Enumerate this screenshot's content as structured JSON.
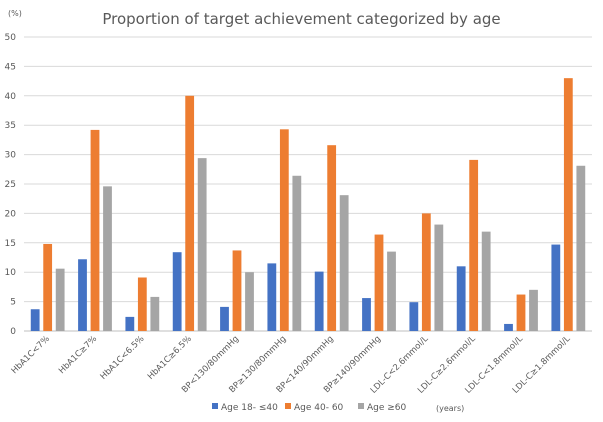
{
  "chart_data": {
    "type": "bar",
    "title": "Proportion of target achievement categorized by age",
    "y_unit_label": "(%)",
    "x_unit_label": "(years)",
    "ylim": [
      0,
      50
    ],
    "yticks": [
      0,
      5,
      10,
      15,
      20,
      25,
      30,
      35,
      40,
      45,
      50
    ],
    "grid": true,
    "legend_position": "bottom",
    "categories": [
      "HbA1C<7%",
      "HbA1C≥7%",
      "HbA1C<6.5%",
      "HbA1C≥6.5%",
      "BP<130/80mmHg",
      "BP≥130/80mmHg",
      "BP<140/90mmHg",
      "BP≥140/90mmHg",
      "LDL-C<2.6mmol/L",
      "LDL-C≥2.6mmol/L",
      "LDL-C<1.8mmol/L",
      "LDL-C≥1.8mmol/L"
    ],
    "series": [
      {
        "name": "Age 18- ≤40",
        "color": "#4472c4",
        "values": [
          3.7,
          12.2,
          2.4,
          13.4,
          4.1,
          11.5,
          10.1,
          5.6,
          4.9,
          11.0,
          1.2,
          14.7
        ]
      },
      {
        "name": "Age 40- 60",
        "color": "#ed7d31",
        "values": [
          14.8,
          34.2,
          9.1,
          40.0,
          13.7,
          34.3,
          31.6,
          16.4,
          20.0,
          29.1,
          6.2,
          43.0
        ]
      },
      {
        "name": "Age ≥60",
        "color": "#a5a5a5",
        "values": [
          10.6,
          24.6,
          5.8,
          29.4,
          10.0,
          26.4,
          23.1,
          13.5,
          18.1,
          16.9,
          7.0,
          28.1
        ]
      }
    ]
  }
}
